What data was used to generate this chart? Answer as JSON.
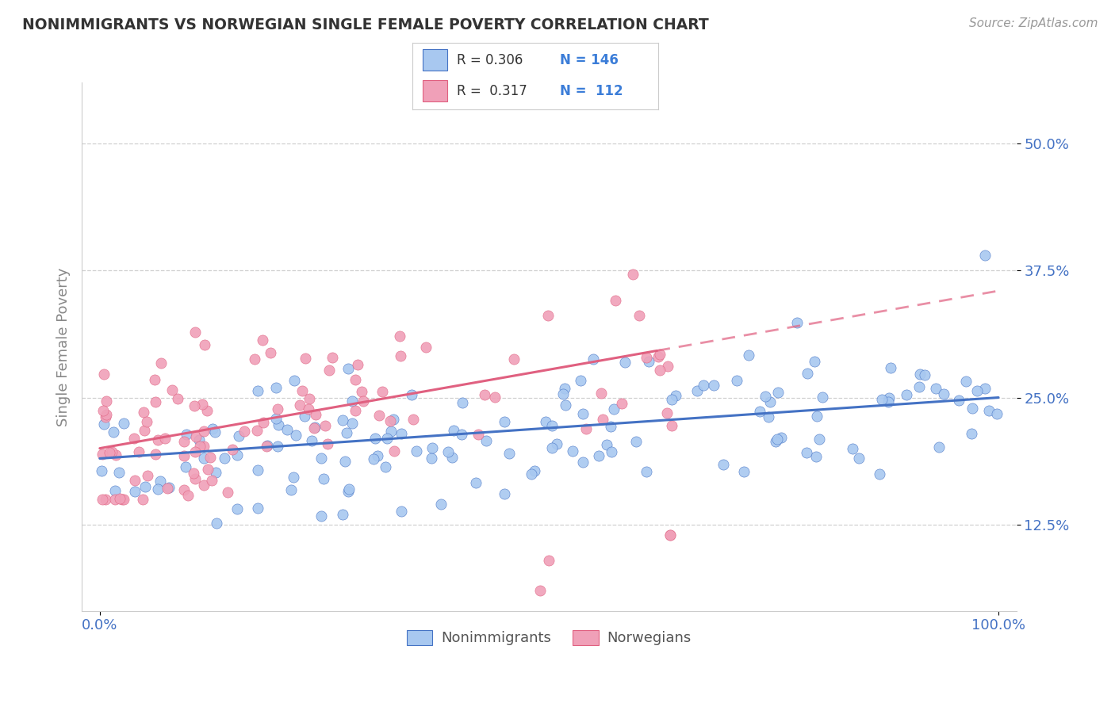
{
  "title": "NONIMMIGRANTS VS NORWEGIAN SINGLE FEMALE POVERTY CORRELATION CHART",
  "source": "Source: ZipAtlas.com",
  "ylabel": "Single Female Poverty",
  "xlim": [
    -0.02,
    1.02
  ],
  "ylim": [
    0.04,
    0.56
  ],
  "yticks": [
    0.125,
    0.25,
    0.375,
    0.5
  ],
  "ytick_labels": [
    "12.5%",
    "25.0%",
    "37.5%",
    "50.0%"
  ],
  "xticks": [
    0.0,
    1.0
  ],
  "xtick_labels": [
    "0.0%",
    "100.0%"
  ],
  "color_blue": "#A8C8F0",
  "color_pink": "#F0A0B8",
  "color_blue_dark": "#4472C4",
  "color_pink_dark": "#E06080",
  "color_blue_text": "#3B7DD8",
  "background": "#FFFFFF",
  "grid_color": "#D0D0D0",
  "blue_intercept": 0.185,
  "blue_slope": 0.065,
  "pink_intercept": 0.195,
  "pink_slope": 0.165
}
